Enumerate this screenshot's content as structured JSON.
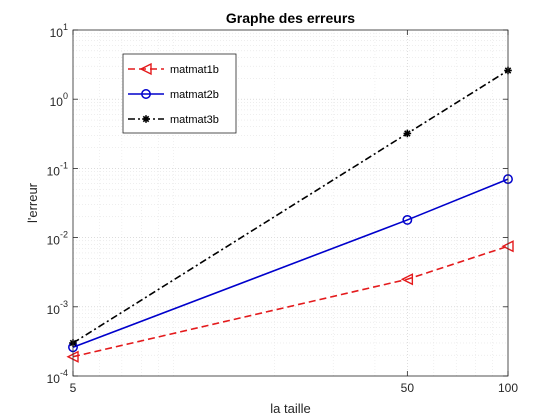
{
  "chart_data": {
    "type": "line",
    "title": "Graphe des erreurs",
    "xlabel": "la taille",
    "ylabel": "l'erreur",
    "yscale": "log",
    "ylim": [
      0.0001,
      10
    ],
    "xlim": [
      5,
      100
    ],
    "x": [
      5,
      50,
      100
    ],
    "x_ticks": [
      "5",
      "50",
      "100"
    ],
    "y_ticks": [
      {
        "base": "10",
        "exp": "-4"
      },
      {
        "base": "10",
        "exp": "-3"
      },
      {
        "base": "10",
        "exp": "-2"
      },
      {
        "base": "10",
        "exp": "-1"
      },
      {
        "base": "10",
        "exp": "0"
      },
      {
        "base": "10",
        "exp": "1"
      }
    ],
    "grid": true,
    "legend_position": "top-left",
    "series": [
      {
        "name": "matmat1b",
        "values": [
          0.00019,
          0.0025,
          0.0075
        ],
        "color": "#e41a1c",
        "dash": "dashed",
        "marker": "triangle-left"
      },
      {
        "name": "matmat2b",
        "values": [
          0.00026,
          0.018,
          0.07
        ],
        "color": "#0000cc",
        "dash": "solid",
        "marker": "circle"
      },
      {
        "name": "matmat3b",
        "values": [
          0.0003,
          0.32,
          2.6
        ],
        "color": "#000000",
        "dash": "dashdot",
        "marker": "asterisk"
      }
    ]
  }
}
